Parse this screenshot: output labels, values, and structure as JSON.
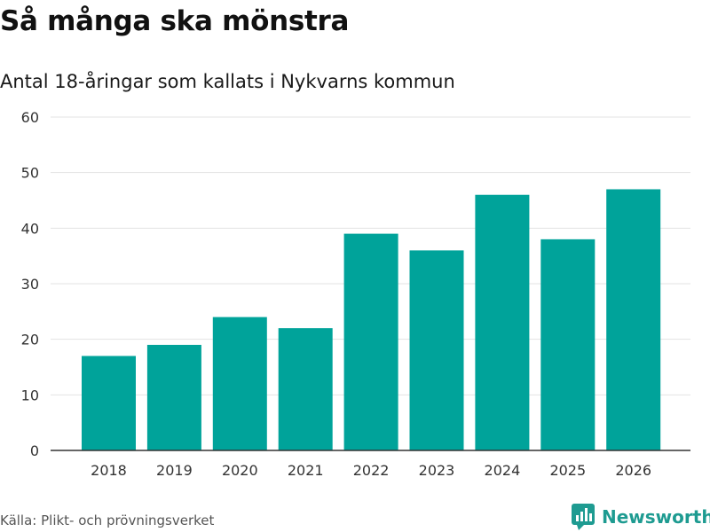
{
  "header": {
    "title": "Så många ska mönstra",
    "subtitle": "Antal 18-åringar som kallats i Nykvarns kommun"
  },
  "footer": {
    "source": "Källa: Plikt- och prövningsverket",
    "brand": "Newsworthy"
  },
  "colors": {
    "bar": "#00a39a",
    "grid": "#e3e3e3",
    "axis": "#333333",
    "brand": "#1e9b91"
  },
  "chart_data": {
    "type": "bar",
    "title": "Så många ska mönstra",
    "subtitle": "Antal 18-åringar som kallats i Nykvarns kommun",
    "xlabel": "",
    "ylabel": "",
    "categories": [
      "2018",
      "2019",
      "2020",
      "2021",
      "2022",
      "2023",
      "2024",
      "2025",
      "2026"
    ],
    "values": [
      17,
      19,
      24,
      22,
      39,
      36,
      46,
      38,
      47
    ],
    "ylim": [
      0,
      60
    ],
    "yticks": [
      0,
      10,
      20,
      30,
      40,
      50,
      60
    ],
    "grid": true,
    "legend": "none"
  }
}
